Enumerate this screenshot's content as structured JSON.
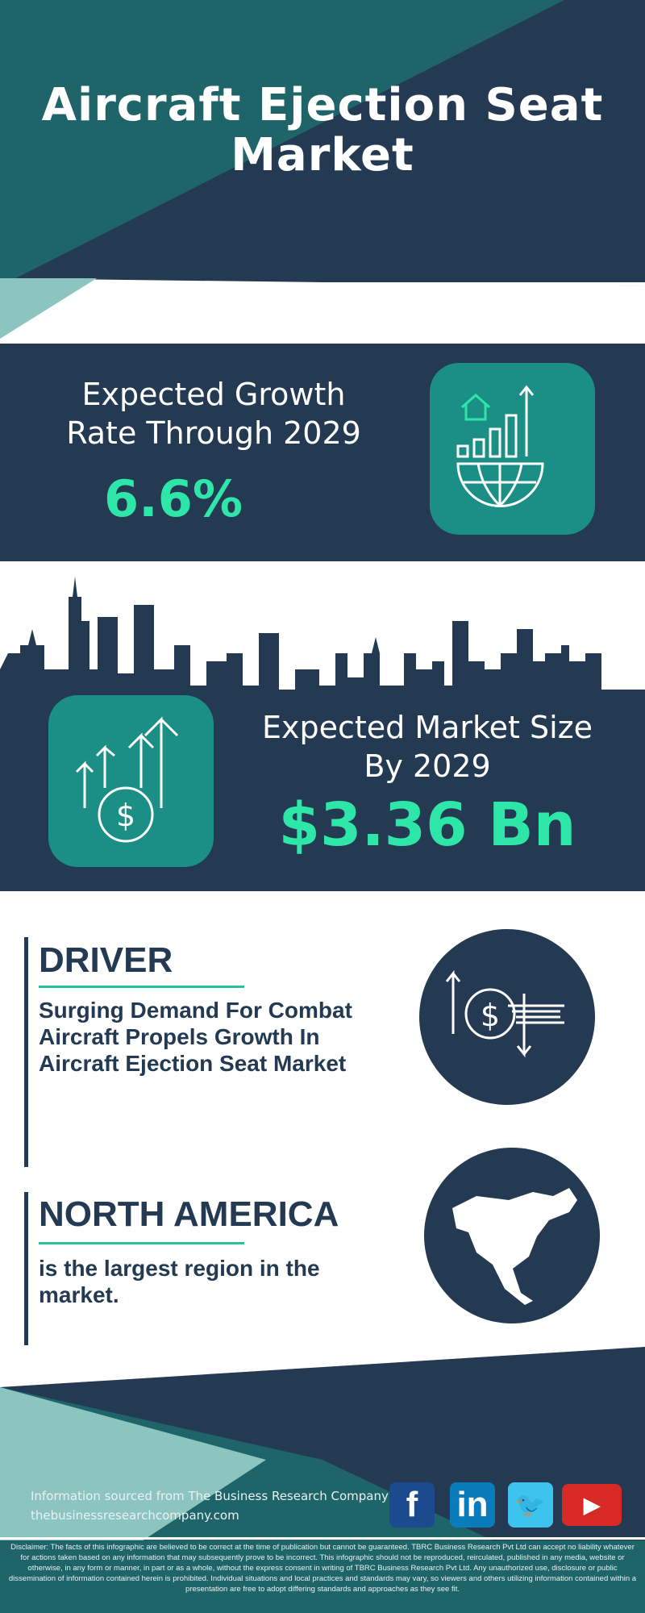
{
  "header": {
    "title": "Aircraft Ejection Seat Market"
  },
  "growth": {
    "label": "Expected Growth Rate Through 2029",
    "value": "6.6%",
    "icon": "growth-chart-globe-icon"
  },
  "market_size": {
    "label": "Expected Market Size By 2029",
    "value": "$3.36 Bn",
    "icon": "money-growth-arrows-icon"
  },
  "driver": {
    "heading": "DRIVER",
    "text": "Surging Demand For Combat Aircraft Propels Growth In Aircraft Ejection Seat Market",
    "icon": "dollar-exchange-icon"
  },
  "region": {
    "heading": "NORTH AMERICA",
    "text": "is the largest region in the market.",
    "icon": "north-america-map-icon"
  },
  "footer": {
    "source": "Information sourced from The Business Research Company",
    "url": "thebusinessresearchcompany.com",
    "social": [
      {
        "name": "facebook",
        "glyph": "f",
        "color": "#1b4a8e"
      },
      {
        "name": "linkedin",
        "glyph": "in",
        "color": "#0a7bbb"
      },
      {
        "name": "twitter",
        "glyph": "🐦",
        "color": "#3cc3ee"
      },
      {
        "name": "youtube",
        "glyph": "▶",
        "color": "#d72a26"
      }
    ],
    "disclaimer": "Disclaimer: The facts of this infographic are believed to be correct at the time of publication but cannot be guaranteed. TBRC Business Research Pvt Ltd can accept no liability whatever for actions taken based on any information that may subsequently prove to be incorrect. This infographic should not be reproduced, reirculated, published in any media, website or otherwise, in any form or manner, in part or as a whole, without the express consent in writing of TBRC Business Research Pvt Ltd. Any unauthorized use, disclosure or public dissemination of information contained herein is prohibited. Individual situations and local practices and standards may vary, so viewers and others utilizing information contained within a presentation are free to adopt differing standards and approaches as they see fit."
  },
  "colors": {
    "navy": "#243a52",
    "teal": "#1e6468",
    "accent": "#2ee6a8",
    "box": "#1b8f85"
  }
}
